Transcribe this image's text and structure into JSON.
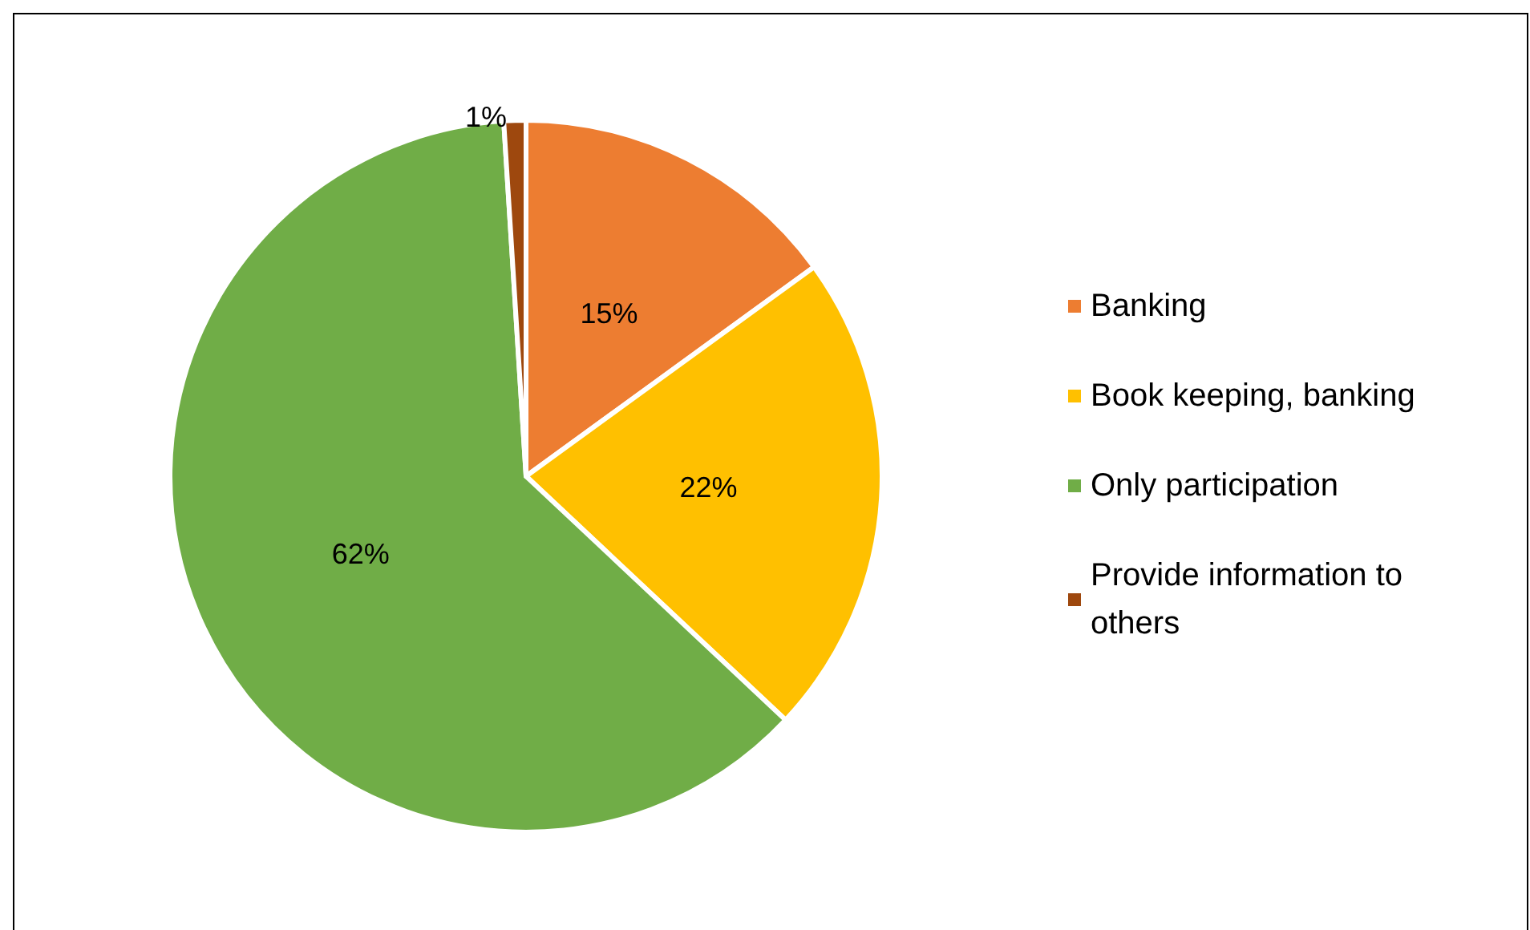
{
  "chart_data": {
    "type": "pie",
    "categories": [
      "Banking",
      "Book keeping, banking",
      "Only participation",
      "Provide information to others"
    ],
    "values": [
      15,
      22,
      62,
      1
    ],
    "colors": [
      "#ed7d31",
      "#ffc000",
      "#70ad47",
      "#9e480e"
    ],
    "value_labels": [
      "15%",
      "22%",
      "62%",
      "1%"
    ],
    "legend": "right"
  }
}
